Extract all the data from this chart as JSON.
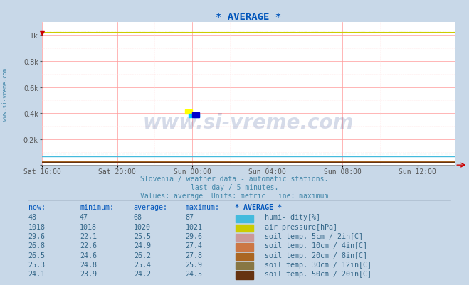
{
  "title": "* AVERAGE *",
  "title_color": "#0055bb",
  "plot_bg_color": "#ffffff",
  "fig_bg_color": "#c8d8e8",
  "x_labels": [
    "Sat 16:00",
    "Sat 20:00",
    "Sun 00:00",
    "Sun 04:00",
    "Sun 08:00",
    "Sun 12:00"
  ],
  "x_ticks": [
    0,
    288,
    576,
    864,
    1152,
    1440
  ],
  "x_max": 1584,
  "y_ticks": [
    0,
    200,
    400,
    600,
    800,
    1000
  ],
  "y_max": 1100,
  "grid_color_major": "#ff9999",
  "grid_color_minor": "#ffdddd",
  "watermark_text": "www.si-vreme.com",
  "watermark_color": "#1a3a88",
  "watermark_alpha": 0.18,
  "subtitle1": "Slovenia / weather data - automatic stations.",
  "subtitle2": "last day / 5 minutes.",
  "subtitle3": "Values: average  Units: metric  Line: maximum",
  "subtitle_color": "#4488aa",
  "left_label": "www.si-vreme.com",
  "left_label_color": "#4488aa",
  "arrow_color": "#cc0000",
  "humi_avg": 68,
  "humi_max": 87,
  "humi_color": "#44bbdd",
  "humi_dashed_color": "#44ccdd",
  "ap_avg": 1020,
  "ap_color": "#cccc00",
  "soil_colors": [
    "#cc9999",
    "#cc7744",
    "#aa6622",
    "#887744",
    "#663311"
  ],
  "soil_avgs": [
    25.5,
    24.9,
    26.2,
    25.4,
    24.2
  ],
  "logo_yellow": "#ffff00",
  "logo_cyan": "#00ccff",
  "logo_blue": "#0000cc",
  "table_header_color": "#0055bb",
  "table_text_color": "#336688",
  "table_headers": [
    "now:",
    "minimum:",
    "average:",
    "maximum:",
    "* AVERAGE *"
  ],
  "table_rows": [
    {
      "now": "48",
      "min": "47",
      "avg": "68",
      "max": "87",
      "color": "#44bbdd",
      "label": "humi- dity[%]"
    },
    {
      "now": "1018",
      "min": "1018",
      "avg": "1020",
      "max": "1021",
      "color": "#cccc00",
      "label": "air pressure[hPa]"
    },
    {
      "now": "29.6",
      "min": "22.1",
      "avg": "25.5",
      "max": "29.6",
      "color": "#cc9999",
      "label": "soil temp. 5cm / 2in[C]"
    },
    {
      "now": "26.8",
      "min": "22.6",
      "avg": "24.9",
      "max": "27.4",
      "color": "#cc7744",
      "label": "soil temp. 10cm / 4in[C]"
    },
    {
      "now": "26.5",
      "min": "24.6",
      "avg": "26.2",
      "max": "27.8",
      "color": "#aa6622",
      "label": "soil temp. 20cm / 8in[C]"
    },
    {
      "now": "25.3",
      "min": "24.8",
      "avg": "25.4",
      "max": "25.9",
      "color": "#887744",
      "label": "soil temp. 30cm / 12in[C]"
    },
    {
      "now": "24.1",
      "min": "23.9",
      "avg": "24.2",
      "max": "24.5",
      "color": "#663311",
      "label": "soil temp. 50cm / 20in[C]"
    }
  ]
}
